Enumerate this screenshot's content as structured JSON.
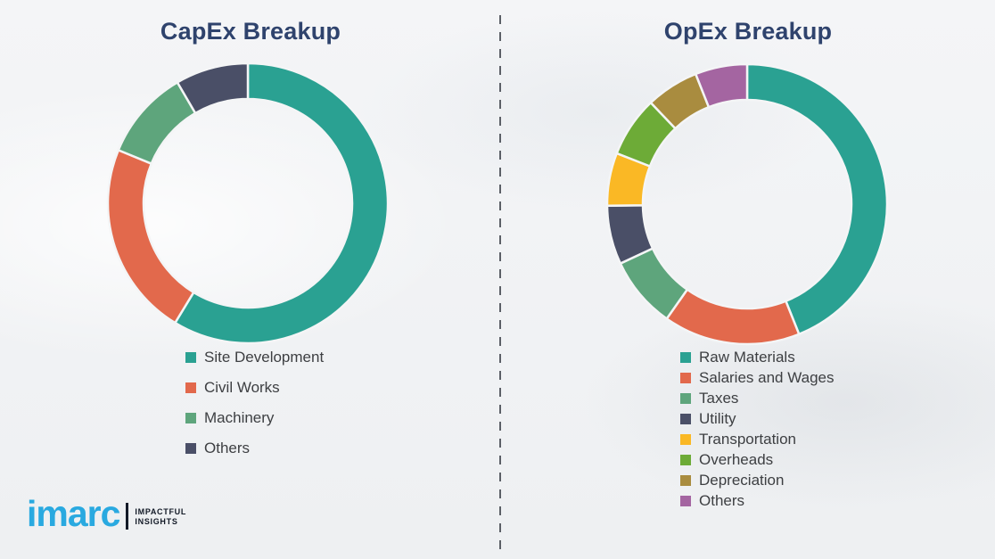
{
  "page": {
    "background_color": "#f1f2f4",
    "divider_color": "#5b5f66"
  },
  "logo": {
    "brand": "imarc",
    "brand_color": "#29a9e0",
    "tagline_line1": "IMPACTFUL",
    "tagline_line2": "INSIGHTS",
    "tagline_color": "#131a27"
  },
  "chart_data": [
    {
      "id": "capex",
      "type": "pie",
      "variant": "donut",
      "title": "CapEx Breakup",
      "title_color": "#2f436d",
      "legend_position": "below-chart-left",
      "value_unit": "% share (estimated from arc angles, no labels shown)",
      "series": [
        {
          "label": "Site Development",
          "value": 58.7,
          "color": "#2aa192"
        },
        {
          "label": "Civil Works",
          "value": 22.5,
          "color": "#e2694c"
        },
        {
          "label": "Machinery",
          "value": 10.4,
          "color": "#5ea57c"
        },
        {
          "label": "Others",
          "value": 8.4,
          "color": "#4a4f67"
        }
      ]
    },
    {
      "id": "opex",
      "type": "pie",
      "variant": "donut",
      "title": "OpEx Breakup",
      "title_color": "#2f436d",
      "legend_position": "below-chart-left",
      "value_unit": "% share (estimated from arc angles, no labels shown)",
      "series": [
        {
          "label": "Raw Materials",
          "value": 44.0,
          "color": "#2aa192"
        },
        {
          "label": "Salaries and Wages",
          "value": 15.8,
          "color": "#e2694c"
        },
        {
          "label": "Taxes",
          "value": 8.3,
          "color": "#5ea57c"
        },
        {
          "label": "Utility",
          "value": 6.8,
          "color": "#4a4f67"
        },
        {
          "label": "Transportation",
          "value": 6.1,
          "color": "#fab825"
        },
        {
          "label": "Overheads",
          "value": 7.0,
          "color": "#6dab37"
        },
        {
          "label": "Depreciation",
          "value": 6.1,
          "color": "#a98c3f"
        },
        {
          "label": "Others",
          "value": 6.0,
          "color": "#a465a1"
        }
      ]
    }
  ]
}
